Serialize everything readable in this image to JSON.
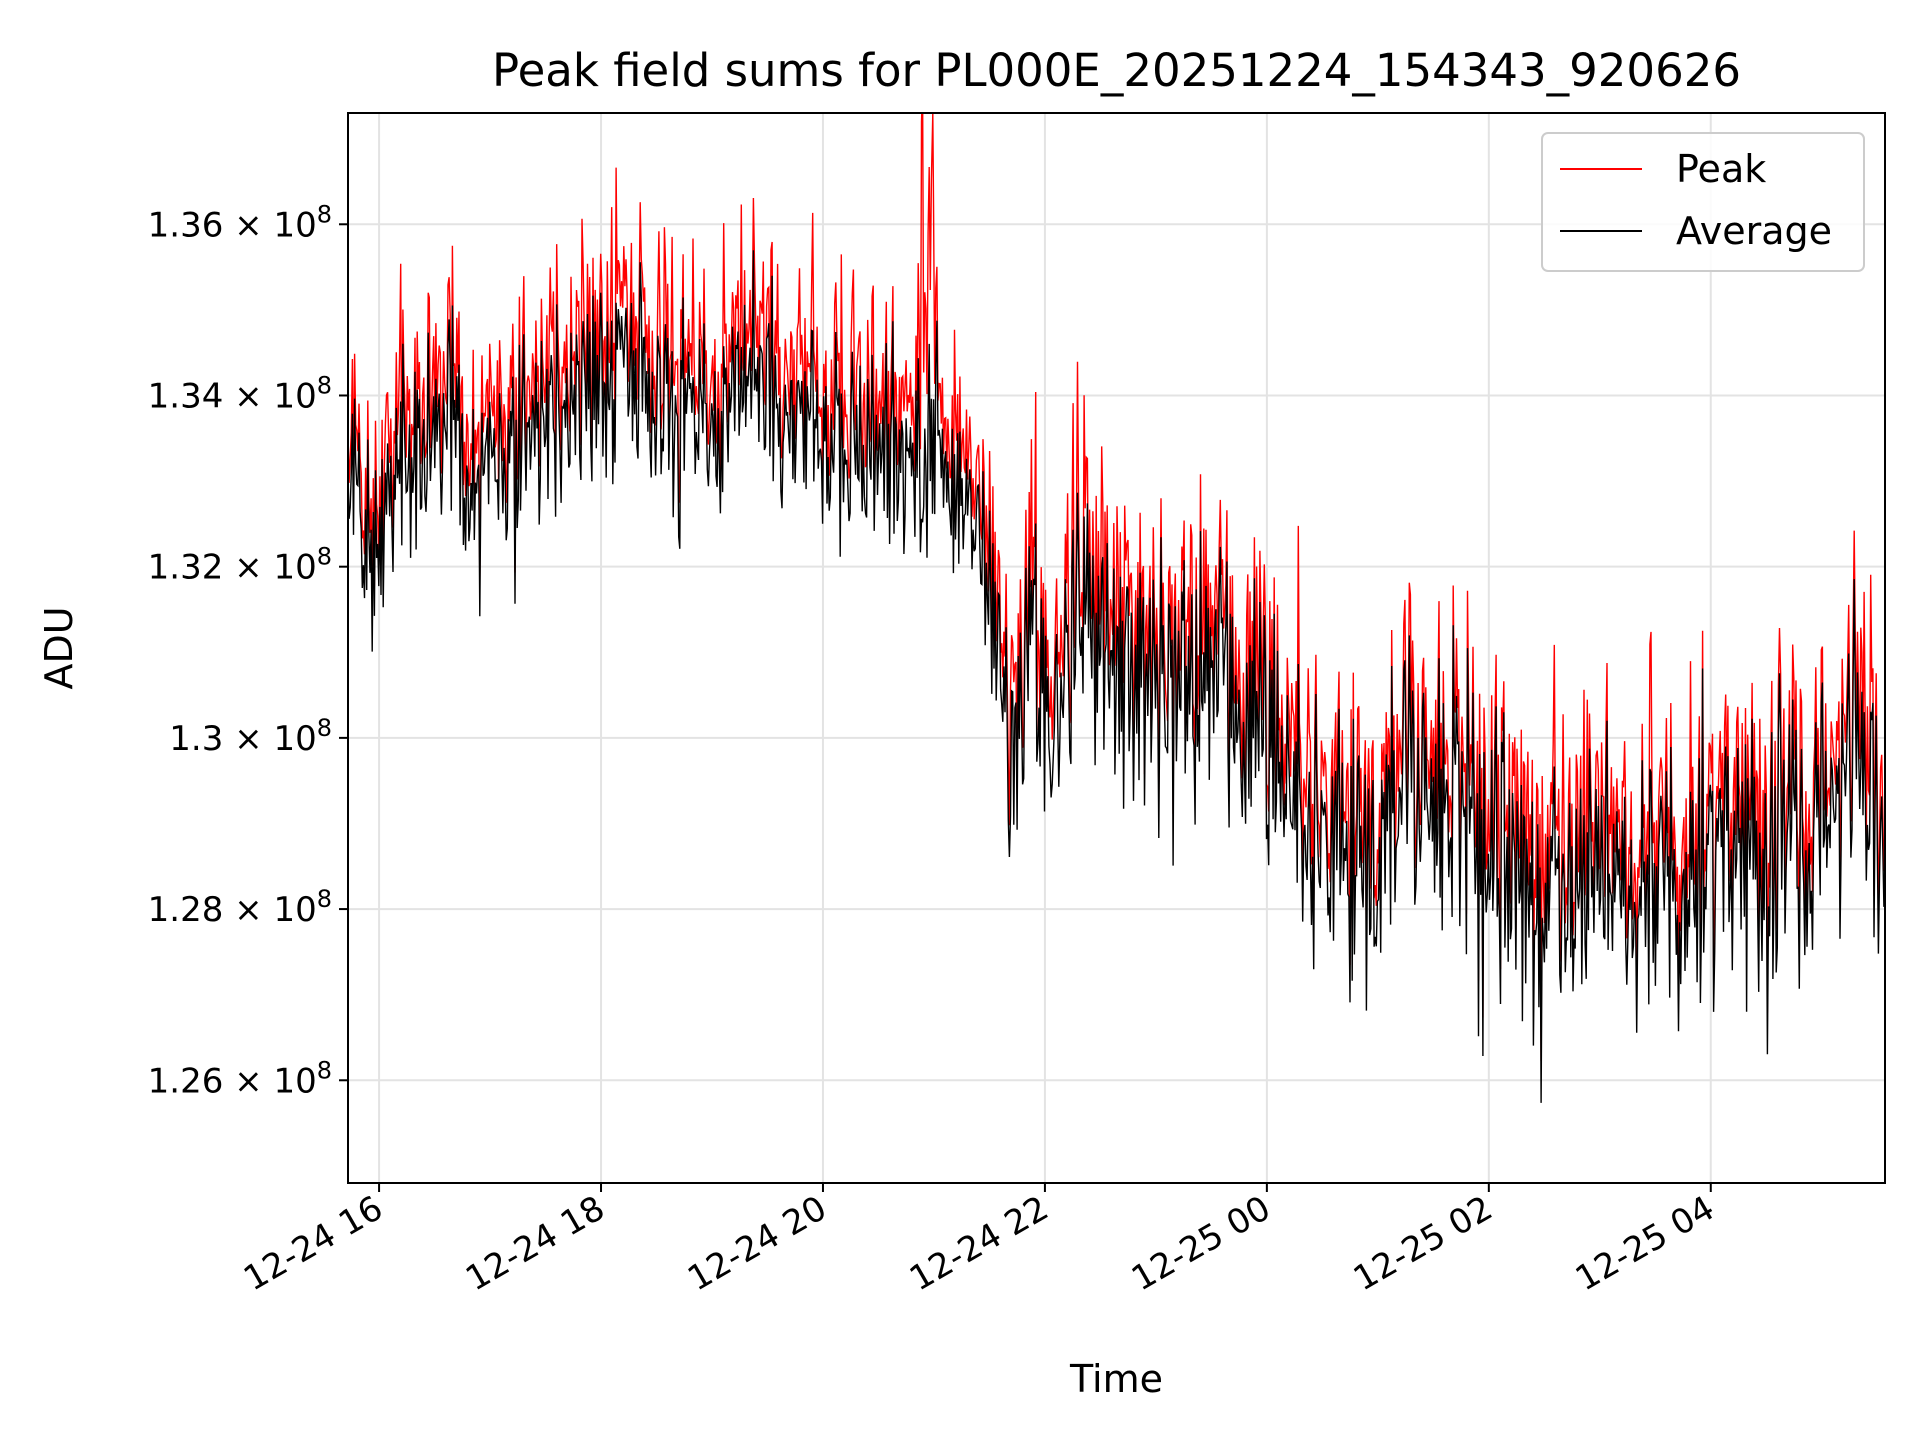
{
  "chart_data": {
    "type": "line",
    "title": "Peak field sums for PL000E_20251224_154343_920626",
    "xlabel": "Time",
    "ylabel": "ADU",
    "x_unit": "hours since 2025-12-24 15:43",
    "xlim": [
      0,
      13.85
    ],
    "ylim": [
      124800000,
      137300000
    ],
    "x_ticks": [
      {
        "x": 0.28,
        "label": "12-24 16"
      },
      {
        "x": 2.28,
        "label": "12-24 18"
      },
      {
        "x": 4.28,
        "label": "12-24 20"
      },
      {
        "x": 6.28,
        "label": "12-24 22"
      },
      {
        "x": 8.28,
        "label": "12-25 00"
      },
      {
        "x": 10.28,
        "label": "12-25 02"
      },
      {
        "x": 12.28,
        "label": "12-25 04"
      }
    ],
    "y_ticks": [
      {
        "y": 126000000,
        "mantissa": "1.26",
        "exp": "8"
      },
      {
        "y": 128000000,
        "mantissa": "1.28",
        "exp": "8"
      },
      {
        "y": 130000000,
        "mantissa": "1.3",
        "exp": "8"
      },
      {
        "y": 132000000,
        "mantissa": "1.32",
        "exp": "8"
      },
      {
        "y": 134000000,
        "mantissa": "1.34",
        "exp": "8"
      },
      {
        "y": 136000000,
        "mantissa": "1.36",
        "exp": "8"
      }
    ],
    "tick_prefix": "× 10",
    "grid": true,
    "legend_position": "top-right",
    "series": [
      {
        "name": "Peak",
        "color": "#ff0000",
        "x": [
          0.0,
          0.15,
          0.3,
          0.5,
          0.7,
          0.9,
          1.1,
          1.3,
          1.5,
          1.7,
          1.9,
          2.1,
          2.3,
          2.5,
          2.7,
          2.9,
          3.1,
          3.3,
          3.5,
          3.7,
          3.9,
          4.1,
          4.3,
          4.5,
          4.7,
          4.9,
          5.1,
          5.27,
          5.3,
          5.5,
          5.7,
          5.85,
          6.0,
          6.2,
          6.4,
          6.6,
          6.8,
          7.0,
          7.2,
          7.4,
          7.6,
          7.8,
          8.0,
          8.2,
          8.4,
          8.6,
          8.8,
          9.0,
          9.2,
          9.4,
          9.6,
          9.8,
          10.0,
          10.2,
          10.4,
          10.6,
          10.8,
          11.0,
          11.2,
          11.4,
          11.6,
          11.8,
          12.0,
          12.2,
          12.4,
          12.6,
          12.8,
          13.0,
          13.2,
          13.4,
          13.6,
          13.85
        ],
        "values": [
          133600000,
          132800000,
          133200000,
          134100000,
          133900000,
          134300000,
          133500000,
          134000000,
          133800000,
          134600000,
          134300000,
          134800000,
          134600000,
          135100000,
          134500000,
          134200000,
          134500000,
          134300000,
          134700000,
          135000000,
          134100000,
          134600000,
          133700000,
          133900000,
          133800000,
          134000000,
          133800000,
          137300000,
          134100000,
          133500000,
          132900000,
          131600000,
          130500000,
          131400000,
          131000000,
          132000000,
          131600000,
          131800000,
          130900000,
          131400000,
          131200000,
          131800000,
          130900000,
          131300000,
          130700000,
          129500000,
          129300000,
          129600000,
          129100000,
          129400000,
          130200000,
          129500000,
          130400000,
          129100000,
          129700000,
          128400000,
          128600000,
          129000000,
          128800000,
          129100000,
          128300000,
          128700000,
          128400000,
          128900000,
          129500000,
          128800000,
          129100000,
          129400000,
          129300000,
          129700000,
          130500000,
          129200000
        ]
      },
      {
        "name": "Average",
        "color": "#000000",
        "x": [
          0.0,
          0.15,
          0.3,
          0.5,
          0.7,
          0.9,
          1.1,
          1.3,
          1.5,
          1.7,
          1.9,
          2.1,
          2.3,
          2.5,
          2.7,
          2.9,
          3.1,
          3.3,
          3.5,
          3.7,
          3.9,
          4.1,
          4.3,
          4.5,
          4.7,
          4.9,
          5.1,
          5.27,
          5.3,
          5.5,
          5.7,
          5.85,
          6.0,
          6.2,
          6.4,
          6.6,
          6.8,
          7.0,
          7.2,
          7.4,
          7.6,
          7.8,
          8.0,
          8.2,
          8.4,
          8.6,
          8.8,
          9.0,
          9.2,
          9.4,
          9.6,
          9.8,
          10.0,
          10.2,
          10.4,
          10.6,
          10.8,
          11.0,
          11.2,
          11.4,
          11.6,
          11.8,
          12.0,
          12.2,
          12.4,
          12.6,
          12.8,
          13.0,
          13.2,
          13.4,
          13.6,
          13.85
        ],
        "values": [
          133000000,
          132300000,
          132700000,
          133500000,
          133300000,
          133700000,
          132900000,
          133400000,
          133200000,
          134000000,
          133700000,
          134200000,
          134000000,
          134500000,
          133900000,
          133600000,
          133900000,
          133700000,
          134100000,
          134400000,
          133500000,
          134000000,
          133100000,
          133300000,
          133200000,
          133400000,
          133200000,
          133300000,
          133500000,
          132900000,
          132300000,
          131000000,
          129900000,
          130800000,
          130400000,
          131400000,
          131000000,
          131200000,
          130300000,
          130800000,
          130600000,
          131200000,
          130300000,
          130700000,
          130100000,
          128900000,
          128700000,
          129000000,
          128500000,
          128800000,
          129600000,
          128900000,
          129800000,
          128500000,
          129100000,
          127800000,
          128000000,
          128400000,
          128200000,
          128500000,
          127700000,
          128100000,
          127800000,
          128300000,
          128900000,
          128200000,
          128500000,
          128800000,
          128700000,
          129100000,
          129900000,
          128600000
        ]
      }
    ]
  }
}
